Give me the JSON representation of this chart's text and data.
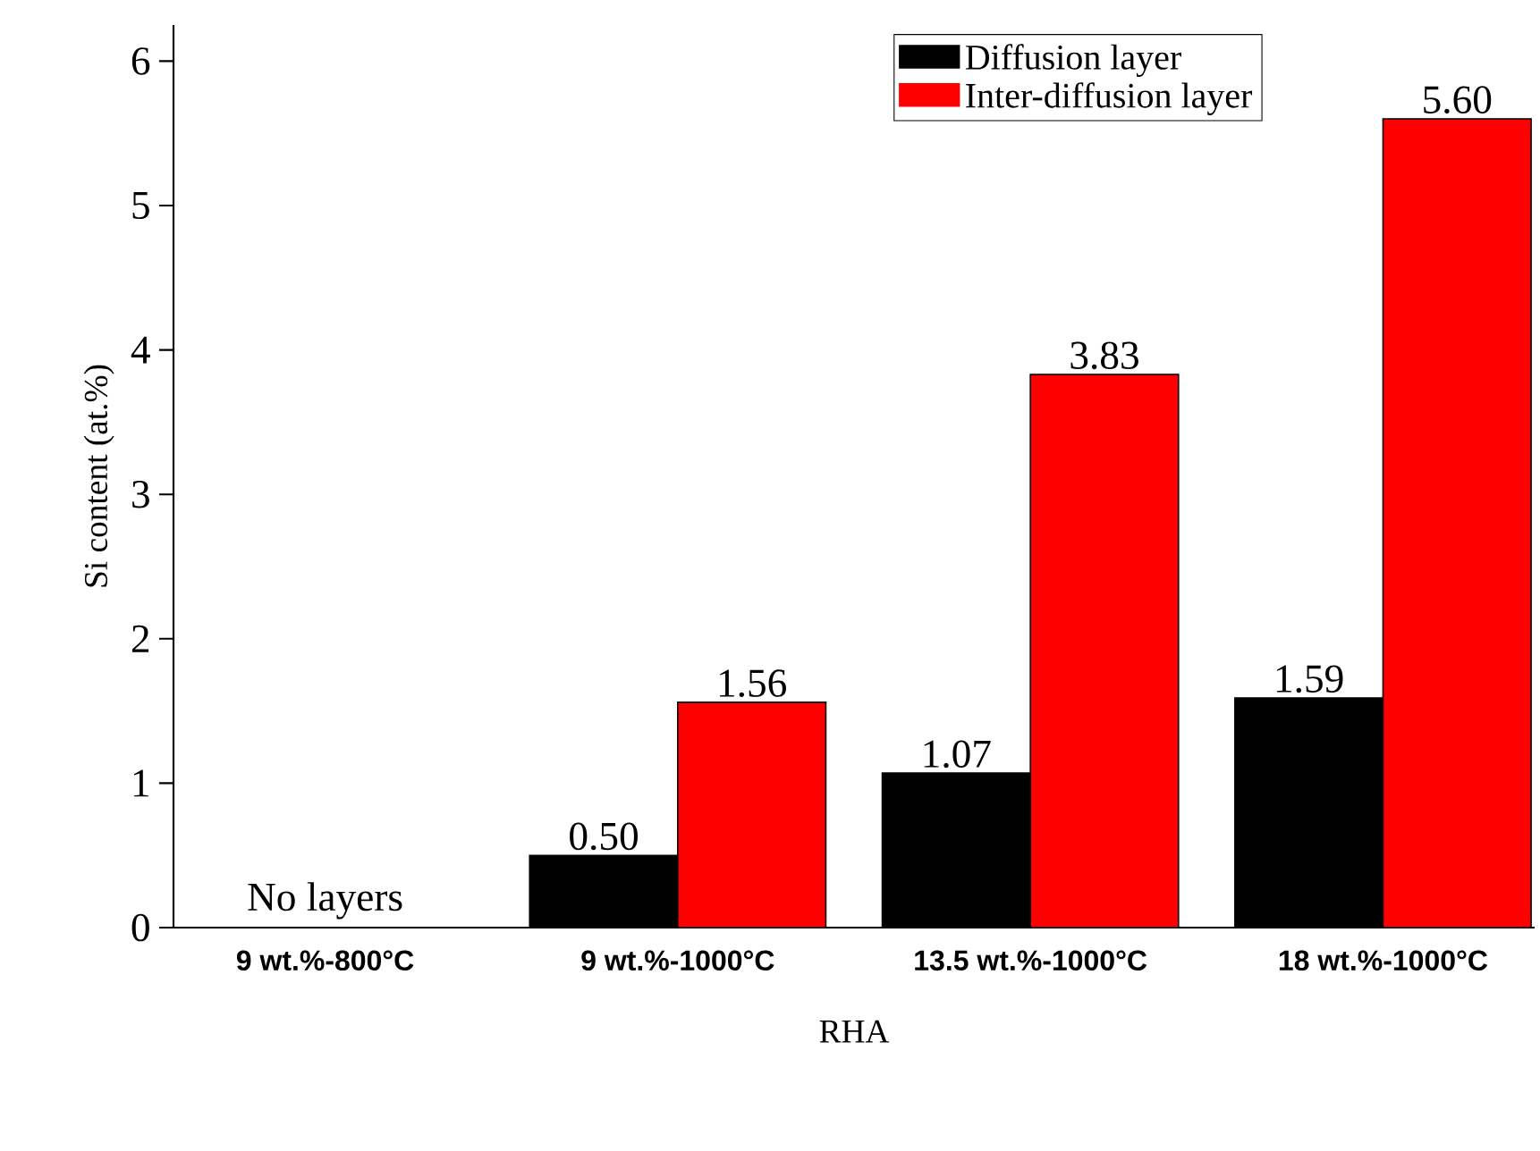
{
  "chart_data": {
    "type": "bar",
    "xlabel": "RHA",
    "ylabel": "Si content (at.%)",
    "categories": [
      "9 wt.%-800°C",
      "9 wt.%-1000°C",
      "13.5 wt.%-1000°C",
      "18 wt.%-1000°C"
    ],
    "series": [
      {
        "name": "Diffusion layer",
        "color": "#000000",
        "values": [
          null,
          0.5,
          1.07,
          1.59
        ],
        "value_labels": [
          null,
          "0.50",
          "1.07",
          "1.59"
        ]
      },
      {
        "name": "Inter-diffusion layer",
        "color": "#ff0000",
        "values": [
          null,
          1.56,
          3.83,
          5.6
        ],
        "value_labels": [
          null,
          "1.56",
          "3.83",
          "5.60"
        ]
      }
    ],
    "ylim": [
      0,
      6.25
    ],
    "yticks": [
      0,
      1,
      2,
      3,
      4,
      5,
      6
    ],
    "grid": false,
    "legend": "top right",
    "annotations": [
      "No layers"
    ]
  }
}
